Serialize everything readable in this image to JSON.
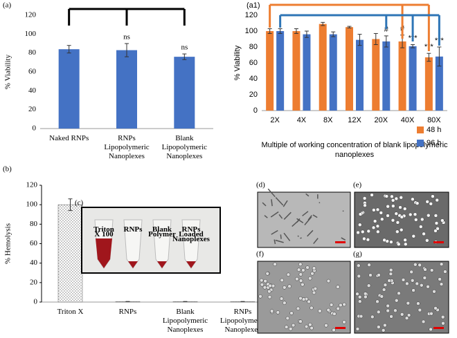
{
  "chart_data": [
    {
      "type": "bar",
      "panel_label": "(a)",
      "ylabel": "% Viability",
      "categories": [
        "Naked  RNPs",
        "RNPs Lipopolymeric Nanoplexes",
        "Blank Lipopolymeric Nanoplexes"
      ],
      "series": [
        {
          "color": "#4472c4",
          "values": [
            84,
            83,
            76
          ],
          "errors": [
            4,
            7,
            3
          ],
          "annotations": [
            null,
            "ns",
            "ns"
          ]
        }
      ],
      "ylim": [
        0,
        120
      ],
      "yticks": [
        0,
        20,
        40,
        60,
        80,
        100,
        120
      ]
    },
    {
      "type": "grouped_bar",
      "panel_label": "(a1)",
      "ylabel": "% Viability",
      "xlabel": "Multiple of working concentration of blank lipopolymeric nanoplexes",
      "categories": [
        "2X",
        "4X",
        "8X",
        "12X",
        "20X",
        "40X",
        "80X"
      ],
      "series": [
        {
          "name": "48 h",
          "color": "#ed7d31",
          "values": [
            100,
            100,
            109,
            105,
            90,
            87,
            67
          ],
          "errors": [
            3,
            3,
            2,
            1,
            7,
            8,
            5
          ],
          "annotations": [
            null,
            null,
            null,
            null,
            null,
            "#",
            "***"
          ]
        },
        {
          "name": "96 h",
          "color": "#4472c4",
          "values": [
            100,
            96,
            96,
            89,
            87,
            81,
            68
          ],
          "errors": [
            3,
            4,
            3,
            7,
            7,
            2,
            12
          ],
          "annotations": [
            null,
            null,
            null,
            null,
            "#",
            "***",
            "***"
          ]
        }
      ],
      "ylim": [
        0,
        120
      ],
      "yticks": [
        0,
        20,
        40,
        60,
        80,
        100,
        120
      ],
      "legend": "right"
    },
    {
      "type": "bar",
      "panel_label": "(b)",
      "ylabel": "% Hemolysis",
      "categories": [
        "Triton X",
        "RNPs",
        "Blank Lipopolymeric Nanoplexes",
        "RNPs Lipopolymeric Nanoplexes"
      ],
      "series": [
        {
          "color": "#777777",
          "pattern": "dots",
          "values": [
            100,
            0.5,
            0.5,
            0.5
          ],
          "errors": [
            6,
            0,
            0,
            0
          ]
        }
      ],
      "ylim": [
        0,
        120
      ],
      "yticks": [
        0,
        20,
        40,
        60,
        80,
        100,
        120
      ],
      "y_axis_line": true
    }
  ],
  "inset": {
    "label": "(c)",
    "tubes": [
      "Triton X 100",
      "RNPs",
      "Blank Polymer",
      "RNPs Loaded Nanoplexes"
    ]
  },
  "photos": [
    {
      "label": "(d)"
    },
    {
      "label": "(e)"
    },
    {
      "label": "(f)"
    },
    {
      "label": "(g)"
    }
  ]
}
